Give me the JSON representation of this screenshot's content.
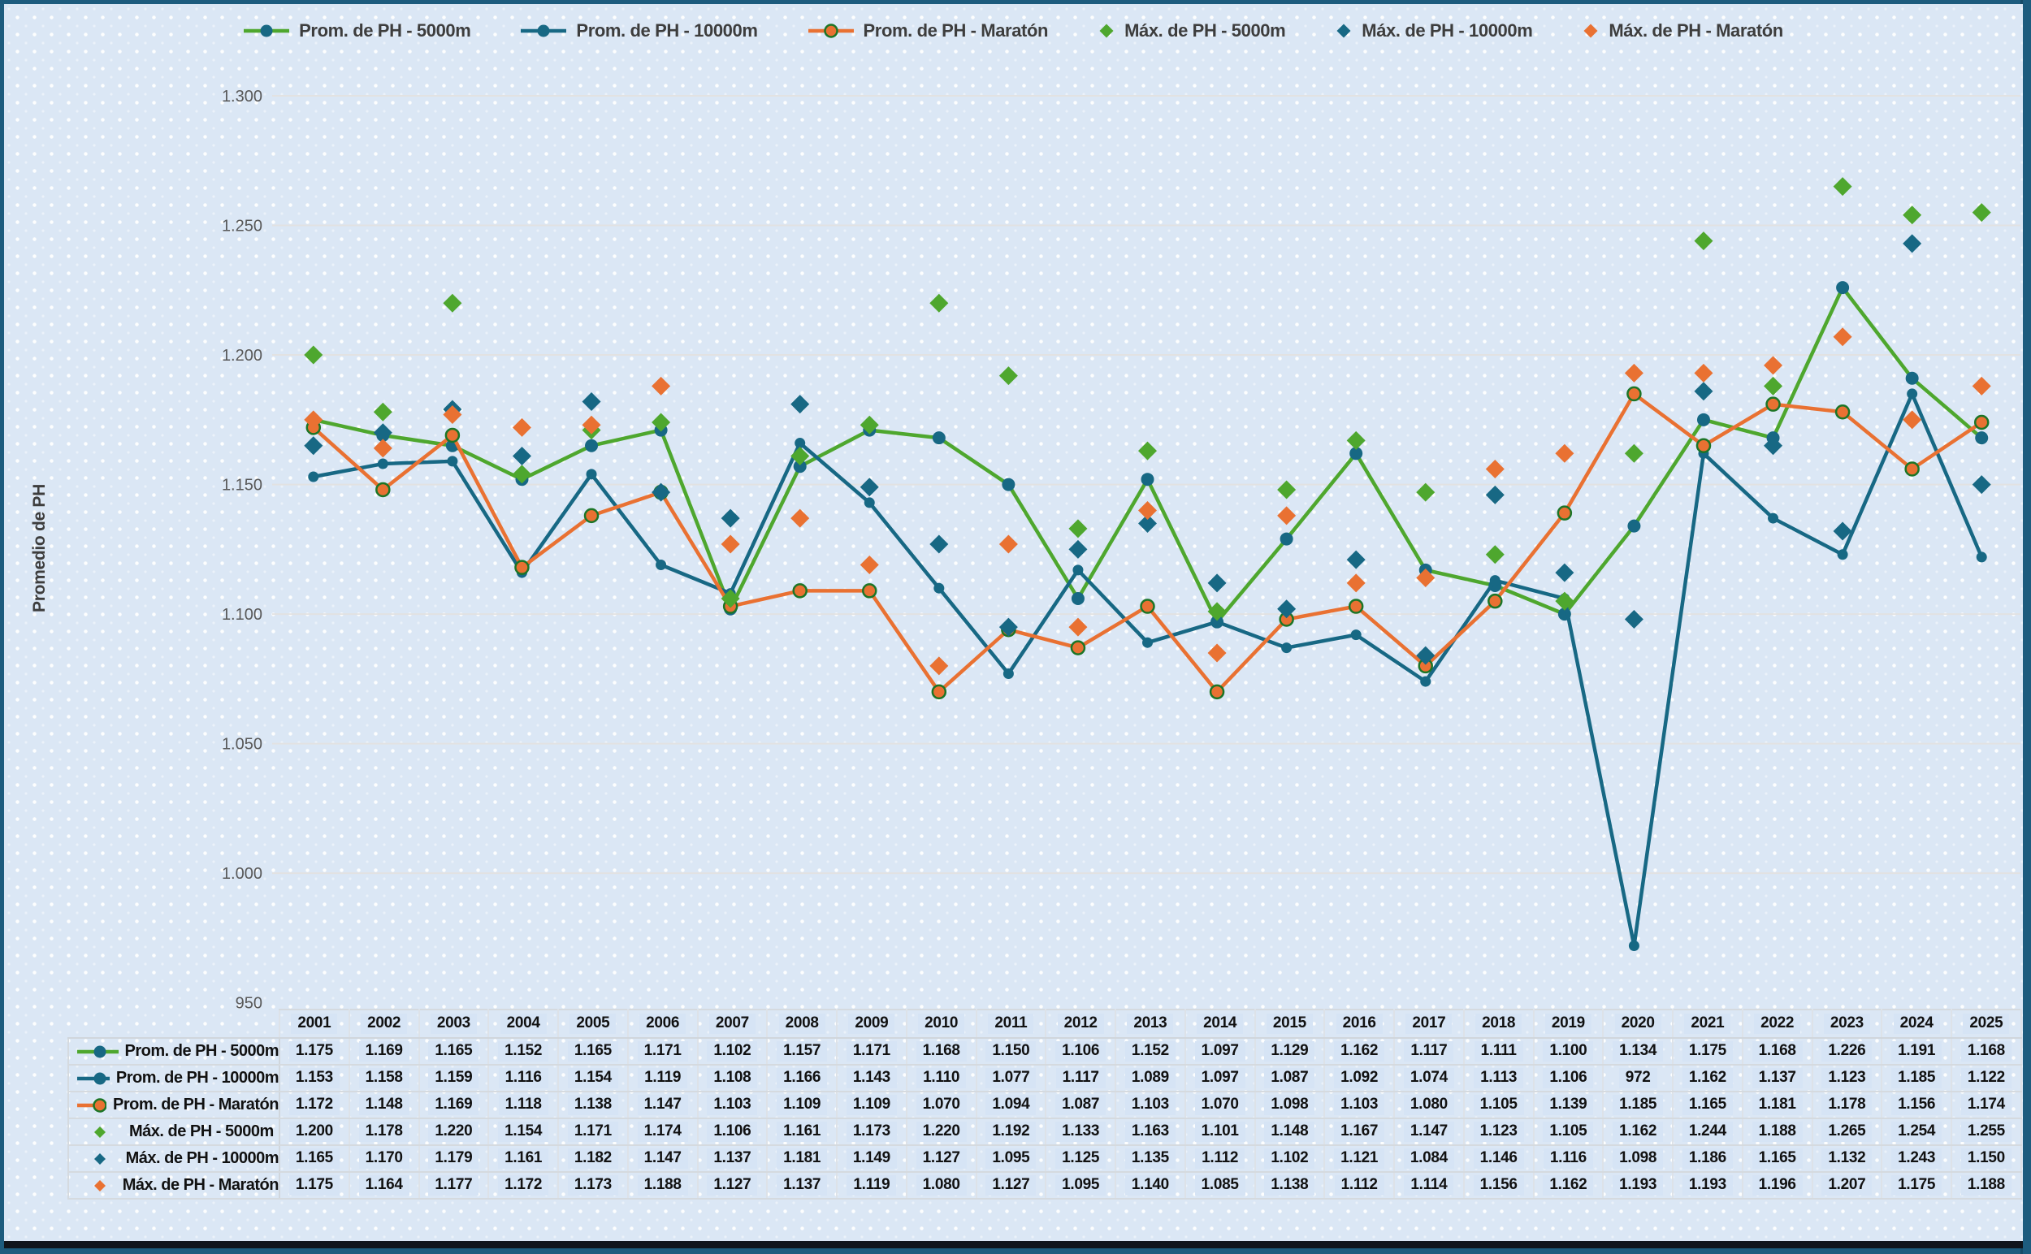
{
  "frame": {
    "color": "#1D5C7E",
    "bottom_edge_color": "#10151C"
  },
  "chart_data": {
    "type": "line",
    "title": "",
    "ylabel": "Promedio de PH",
    "x": [
      "2001",
      "2002",
      "2003",
      "2004",
      "2005",
      "2006",
      "2007",
      "2008",
      "2009",
      "2010",
      "2011",
      "2012",
      "2013",
      "2014",
      "2015",
      "2016",
      "2017",
      "2018",
      "2019",
      "2020",
      "2021",
      "2022",
      "2023",
      "2024",
      "2025"
    ],
    "y_axis": {
      "min": 950,
      "max": 1300,
      "step": 50,
      "tick_labels": [
        "1.300",
        "1.250",
        "1.200",
        "1.150",
        "1.100",
        "1.050",
        "1.000",
        "950"
      ]
    },
    "grid": true,
    "legend_position": "top",
    "colors": {
      "green": "#4EA72E",
      "teal": "#176884",
      "orange": "#E97132",
      "ring_dark_green": "#1C7527",
      "gridline": "#E2E2E2",
      "tick_text": "#595959",
      "legend_text": "#3D3D3D"
    },
    "series": [
      {
        "name": "Prom. de PH - 5000m",
        "kind": "line",
        "line_color": "#4EA72E",
        "marker": "circle",
        "marker_fill": "#176884",
        "marker_stroke": "none",
        "values": [
          "1.175",
          "1.169",
          "1.165",
          "1.152",
          "1.165",
          "1.171",
          "1.102",
          "1.157",
          "1.171",
          "1.168",
          "1.150",
          "1.106",
          "1.152",
          "1.097",
          "1.129",
          "1.162",
          "1.117",
          "1.111",
          "1.100",
          "1.134",
          "1.175",
          "1.168",
          "1.226",
          "1.191",
          "1.168"
        ]
      },
      {
        "name": "Prom. de PH - 10000m",
        "kind": "line",
        "line_color": "#176884",
        "marker": "circle",
        "marker_fill": "#176884",
        "marker_stroke": "none",
        "values": [
          "1.153",
          "1.158",
          "1.159",
          "1.116",
          "1.154",
          "1.119",
          "1.108",
          "1.166",
          "1.143",
          "1.110",
          "1.077",
          "1.117",
          "1.089",
          "1.097",
          "1.087",
          "1.092",
          "1.074",
          "1.113",
          "1.106",
          "972",
          "1.162",
          "1.137",
          "1.123",
          "1.185",
          "1.122"
        ]
      },
      {
        "name": "Prom. de PH - Maratón",
        "kind": "line",
        "line_color": "#E97132",
        "marker": "circle",
        "marker_fill": "#E97132",
        "marker_stroke": "#1C7527",
        "values": [
          "1.172",
          "1.148",
          "1.169",
          "1.118",
          "1.138",
          "1.147",
          "1.103",
          "1.109",
          "1.109",
          "1.070",
          "1.094",
          "1.087",
          "1.103",
          "1.070",
          "1.098",
          "1.103",
          "1.080",
          "1.105",
          "1.139",
          "1.185",
          "1.165",
          "1.181",
          "1.178",
          "1.156",
          "1.174"
        ]
      },
      {
        "name": "Máx. de PH - 5000m",
        "kind": "scatter",
        "line_color": "#4EA72E",
        "marker": "diamond",
        "marker_fill": "#4EA72E",
        "marker_stroke": "none",
        "values": [
          "1.200",
          "1.178",
          "1.220",
          "1.154",
          "1.171",
          "1.174",
          "1.106",
          "1.161",
          "1.173",
          "1.220",
          "1.192",
          "1.133",
          "1.163",
          "1.101",
          "1.148",
          "1.167",
          "1.147",
          "1.123",
          "1.105",
          "1.162",
          "1.244",
          "1.188",
          "1.265",
          "1.254",
          "1.255"
        ]
      },
      {
        "name": "Máx. de PH - 10000m",
        "kind": "scatter",
        "line_color": "#176884",
        "marker": "diamond",
        "marker_fill": "#176884",
        "marker_stroke": "none",
        "values": [
          "1.165",
          "1.170",
          "1.179",
          "1.161",
          "1.182",
          "1.147",
          "1.137",
          "1.181",
          "1.149",
          "1.127",
          "1.095",
          "1.125",
          "1.135",
          "1.112",
          "1.102",
          "1.121",
          "1.084",
          "1.146",
          "1.116",
          "1.098",
          "1.186",
          "1.165",
          "1.132",
          "1.243",
          "1.150"
        ]
      },
      {
        "name": "Máx. de PH - Maratón",
        "kind": "scatter",
        "line_color": "#E97132",
        "marker": "diamond",
        "marker_fill": "#E97132",
        "marker_stroke": "none",
        "values": [
          "1.175",
          "1.164",
          "1.177",
          "1.172",
          "1.173",
          "1.188",
          "1.127",
          "1.137",
          "1.119",
          "1.080",
          "1.127",
          "1.095",
          "1.140",
          "1.085",
          "1.138",
          "1.112",
          "1.114",
          "1.156",
          "1.162",
          "1.193",
          "1.193",
          "1.196",
          "1.207",
          "1.175",
          "1.188"
        ]
      }
    ]
  }
}
